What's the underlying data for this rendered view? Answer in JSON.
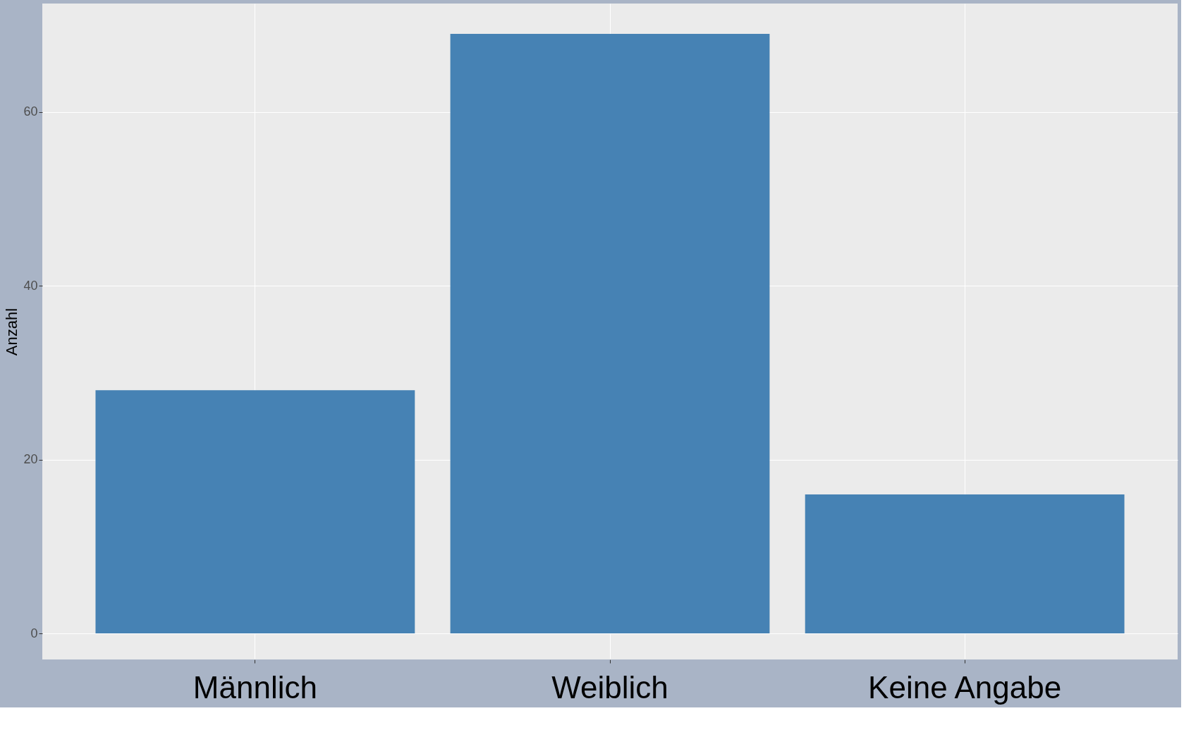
{
  "chart_data": {
    "type": "bar",
    "ylabel": "Anzahl",
    "categories": [
      "Männlich",
      "Weiblich",
      "Keine Angabe"
    ],
    "values": [
      28,
      69,
      16
    ],
    "color": "#4682b4",
    "ylim": [
      -3,
      72.5
    ],
    "yticks": [
      0,
      20,
      40,
      60
    ],
    "grid": true
  }
}
